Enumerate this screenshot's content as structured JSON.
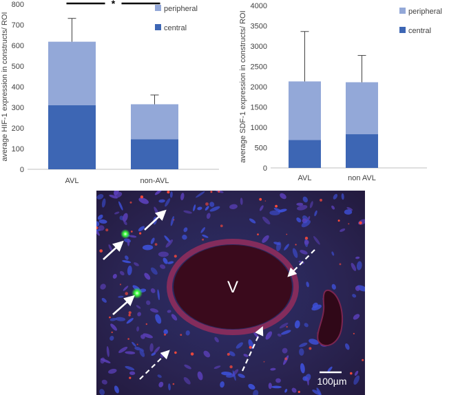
{
  "chart_data": [
    {
      "type": "bar",
      "stacked": true,
      "ylabel": "average HIF-1 expression in constructs/ ROI",
      "ylim": [
        0,
        800
      ],
      "yticks": [
        0,
        100,
        200,
        300,
        400,
        500,
        600,
        700,
        800
      ],
      "categories": [
        "AVL",
        "non-AVL"
      ],
      "series": [
        {
          "name": "central",
          "values": [
            310,
            145
          ],
          "color": "#3d66b4"
        },
        {
          "name": "peripheral",
          "values": [
            308,
            170
          ],
          "color": "#93a8d8"
        }
      ],
      "error_bar_tops": [
        731,
        360
      ],
      "legend": [
        "peripheral",
        "central"
      ],
      "legend_position": "top-right",
      "significance": "*",
      "grid": false
    },
    {
      "type": "bar",
      "stacked": true,
      "ylabel": "average SDF-1 expression in constructs/ ROI",
      "ylim": [
        0,
        4000
      ],
      "yticks": [
        0,
        500,
        1000,
        1500,
        2000,
        2500,
        3000,
        3500,
        4000
      ],
      "categories": [
        "AVL",
        "non AVL"
      ],
      "series": [
        {
          "name": "central",
          "values": [
            690,
            830
          ],
          "color": "#3d66b4"
        },
        {
          "name": "peripheral",
          "values": [
            1440,
            1280
          ],
          "color": "#93a8d8"
        }
      ],
      "error_bar_tops": [
        3360,
        2770
      ],
      "legend": [
        "peripheral",
        "central"
      ],
      "legend_position": "top-right",
      "grid": false
    }
  ],
  "micrograph": {
    "vessel_label": "V",
    "scale_bar_label": "100µm",
    "colors": {
      "background": "#2a2150",
      "nuclei": "#3a4ad0",
      "signal_red": "#ff3b30",
      "signal_green": "#39ff3a",
      "vessel_lumen": "#3a0a1c",
      "vessel_wall": "#a0305a"
    }
  }
}
